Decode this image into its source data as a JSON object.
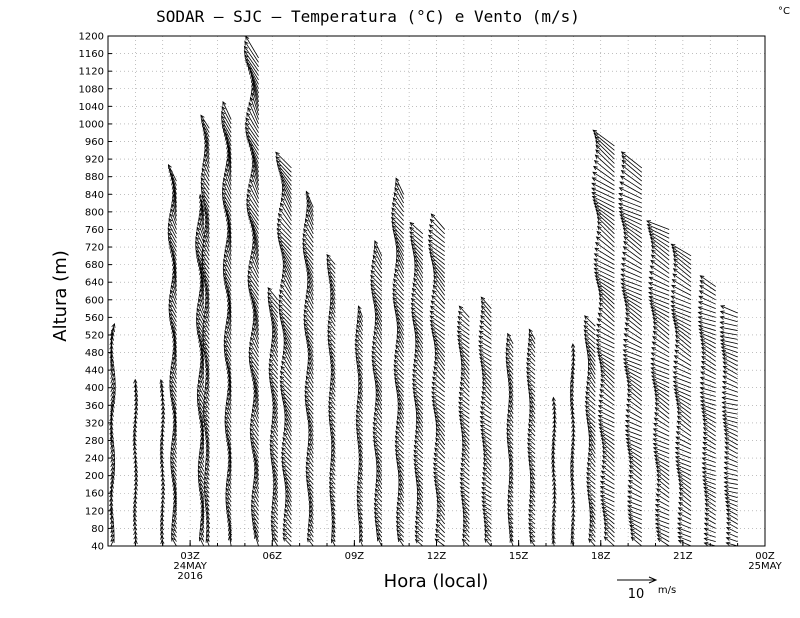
{
  "chart_data": {
    "type": "scatter",
    "title": "SODAR – SJC – Temperatura (°C) e Vento (m/s)",
    "corner_unit": "°C",
    "xlabel": "Hora (local)",
    "ylabel": "Altura (m)",
    "ylim": [
      40,
      1200
    ],
    "yticks": [
      40,
      80,
      120,
      160,
      200,
      240,
      280,
      320,
      360,
      400,
      440,
      480,
      520,
      560,
      600,
      640,
      680,
      720,
      760,
      800,
      840,
      880,
      920,
      960,
      1000,
      1040,
      1080,
      1120,
      1160,
      1200
    ],
    "xlim": [
      0,
      24
    ],
    "xticks": [
      {
        "x": 3,
        "label": "03Z",
        "sub": [
          "24MAY",
          "2016"
        ]
      },
      {
        "x": 6,
        "label": "06Z"
      },
      {
        "x": 9,
        "label": "09Z"
      },
      {
        "x": 12,
        "label": "12Z"
      },
      {
        "x": 15,
        "label": "15Z"
      },
      {
        "x": 18,
        "label": "18Z"
      },
      {
        "x": 21,
        "label": "21Z"
      },
      {
        "x": 24,
        "label": "00Z",
        "sub": [
          "25MAY"
        ]
      }
    ],
    "grid": true,
    "reference_vector": {
      "speed": 10,
      "label": "10",
      "unit": "m/s"
    },
    "arrow_series": [
      {
        "t": 0.1,
        "zmax": 520,
        "dir": 195,
        "speed": 4
      },
      {
        "t": 1.0,
        "zmax": 400,
        "dir": 180,
        "speed": 3
      },
      {
        "t": 2.0,
        "zmax": 400,
        "dir": 175,
        "speed": 3
      },
      {
        "t": 2.5,
        "zmax": 870,
        "dir": 160,
        "speed": 5
      },
      {
        "t": 3.5,
        "zmax": 800,
        "dir": 160,
        "speed": 5
      },
      {
        "t": 3.7,
        "zmax": 990,
        "dir": 155,
        "speed": 4
      },
      {
        "t": 4.5,
        "zmax": 1015,
        "dir": 160,
        "speed": 5
      },
      {
        "t": 5.5,
        "zmax": 1150,
        "dir": 155,
        "speed": 6
      },
      {
        "t": 6.2,
        "zmax": 600,
        "dir": 150,
        "speed": 5
      },
      {
        "t": 6.7,
        "zmax": 900,
        "dir": 145,
        "speed": 6
      },
      {
        "t": 7.5,
        "zmax": 810,
        "dir": 150,
        "speed": 5
      },
      {
        "t": 8.3,
        "zmax": 680,
        "dir": 150,
        "speed": 4
      },
      {
        "t": 9.3,
        "zmax": 560,
        "dir": 150,
        "speed": 4
      },
      {
        "t": 10.0,
        "zmax": 700,
        "dir": 145,
        "speed": 5
      },
      {
        "t": 10.8,
        "zmax": 840,
        "dir": 145,
        "speed": 5
      },
      {
        "t": 11.5,
        "zmax": 755,
        "dir": 140,
        "speed": 5
      },
      {
        "t": 12.3,
        "zmax": 760,
        "dir": 135,
        "speed": 6
      },
      {
        "t": 13.2,
        "zmax": 560,
        "dir": 135,
        "speed": 5
      },
      {
        "t": 14.0,
        "zmax": 580,
        "dir": 130,
        "speed": 5
      },
      {
        "t": 14.8,
        "zmax": 500,
        "dir": 150,
        "speed": 4
      },
      {
        "t": 15.6,
        "zmax": 510,
        "dir": 140,
        "speed": 4
      },
      {
        "t": 16.3,
        "zmax": 360,
        "dir": 175,
        "speed": 3
      },
      {
        "t": 17.0,
        "zmax": 480,
        "dir": 170,
        "speed": 3
      },
      {
        "t": 17.8,
        "zmax": 540,
        "dir": 140,
        "speed": 5
      },
      {
        "t": 18.5,
        "zmax": 950,
        "dir": 125,
        "speed": 7
      },
      {
        "t": 19.5,
        "zmax": 900,
        "dir": 120,
        "speed": 7
      },
      {
        "t": 20.5,
        "zmax": 760,
        "dir": 120,
        "speed": 7
      },
      {
        "t": 21.3,
        "zmax": 700,
        "dir": 120,
        "speed": 7
      },
      {
        "t": 22.2,
        "zmax": 630,
        "dir": 115,
        "speed": 6
      },
      {
        "t": 23.0,
        "zmax": 570,
        "dir": 110,
        "speed": 6
      }
    ]
  }
}
